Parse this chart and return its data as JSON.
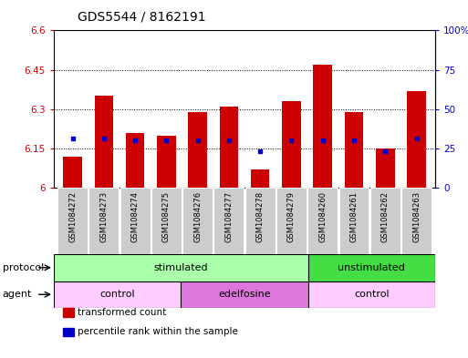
{
  "title": "GDS5544 / 8162191",
  "samples": [
    "GSM1084272",
    "GSM1084273",
    "GSM1084274",
    "GSM1084275",
    "GSM1084276",
    "GSM1084277",
    "GSM1084278",
    "GSM1084279",
    "GSM1084260",
    "GSM1084261",
    "GSM1084262",
    "GSM1084263"
  ],
  "bar_values": [
    6.12,
    6.35,
    6.21,
    6.2,
    6.29,
    6.31,
    6.07,
    6.33,
    6.47,
    6.29,
    6.15,
    6.37
  ],
  "dot_values": [
    6.19,
    6.19,
    6.18,
    6.18,
    6.18,
    6.18,
    6.14,
    6.18,
    6.18,
    6.18,
    6.14,
    6.19
  ],
  "ylim_left": [
    6.0,
    6.6
  ],
  "ylim_right": [
    0,
    100
  ],
  "yticks_left": [
    6.0,
    6.15,
    6.3,
    6.45,
    6.6
  ],
  "yticks_right": [
    0,
    25,
    50,
    75,
    100
  ],
  "ytick_labels_left": [
    "6",
    "6.15",
    "6.3",
    "6.45",
    "6.6"
  ],
  "ytick_labels_right": [
    "0",
    "25",
    "50",
    "75",
    "100%"
  ],
  "hline_values": [
    6.15,
    6.3,
    6.45
  ],
  "bar_color": "#cc0000",
  "dot_color": "#0000cc",
  "bar_bottom": 6.0,
  "protocol_groups": [
    {
      "label": "stimulated",
      "start": 0,
      "end": 8,
      "color": "#aaffaa"
    },
    {
      "label": "unstimulated",
      "start": 8,
      "end": 12,
      "color": "#44dd44"
    }
  ],
  "agent_groups": [
    {
      "label": "control",
      "start": 0,
      "end": 4,
      "color": "#ffccff"
    },
    {
      "label": "edelfosine",
      "start": 4,
      "end": 8,
      "color": "#dd77dd"
    },
    {
      "label": "control",
      "start": 8,
      "end": 12,
      "color": "#ffccff"
    }
  ],
  "legend_items": [
    {
      "label": "transformed count",
      "color": "#cc0000"
    },
    {
      "label": "percentile rank within the sample",
      "color": "#0000cc"
    }
  ],
  "cell_bg": "#cccccc",
  "spine_color": "#000000"
}
